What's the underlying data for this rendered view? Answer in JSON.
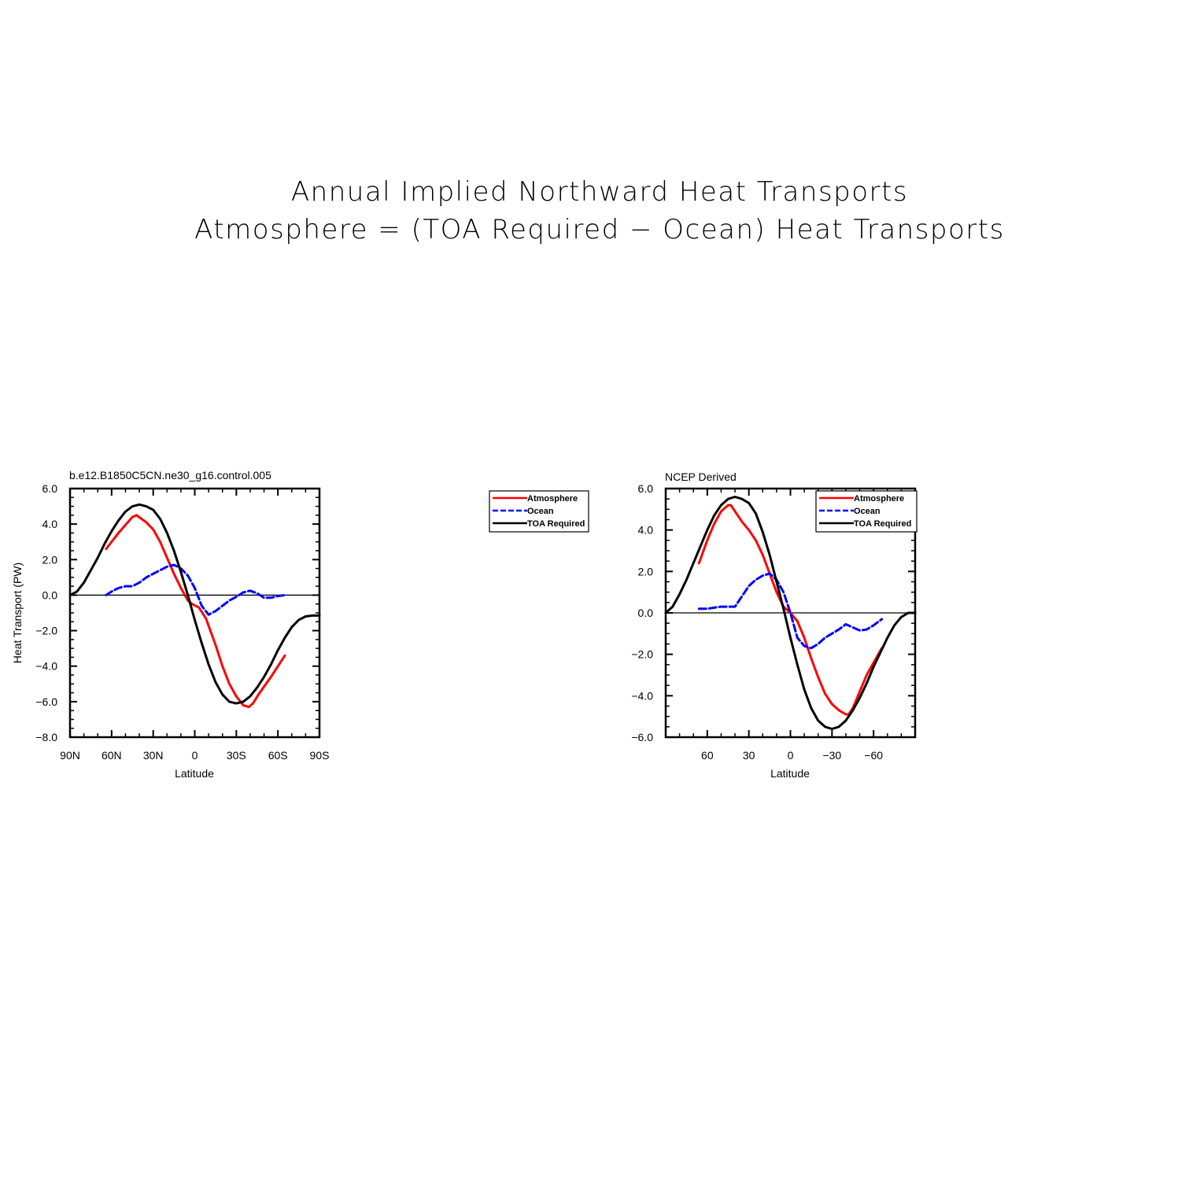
{
  "figure": {
    "title_line1": "Annual Implied Northward Heat Transports",
    "title_line2": "Atmosphere = (TOA Required − Ocean) Heat Transports"
  },
  "colors": {
    "atmosphere": "#ff0000",
    "ocean": "#0000ff",
    "toa": "#000000"
  },
  "legend_entries": [
    {
      "label": "Atmosphere",
      "color": "#ff0000",
      "dash": false
    },
    {
      "label": "Ocean",
      "color": "#0000ff",
      "dash": true
    },
    {
      "label": "TOA Required",
      "color": "#000000",
      "dash": false
    }
  ],
  "chart_data": [
    {
      "type": "line",
      "title": "b.e12.B1850C5CN.ne30_g16.control.005",
      "xlabel": "Latitude",
      "ylabel": "Heat Transport (PW)",
      "xlim": [
        90,
        -90
      ],
      "ylim": [
        -8,
        6
      ],
      "xticks": [
        90,
        60,
        30,
        0,
        -30,
        -60,
        -90
      ],
      "xticklabels": [
        "90N",
        "60N",
        "30N",
        "0",
        "30S",
        "60S",
        "90S"
      ],
      "yticks": [
        6,
        4,
        2,
        0,
        -2,
        -4,
        -6,
        -8
      ],
      "yticklabels": [
        "6.0",
        "4.0",
        "2.0",
        "0.0",
        "−2.0",
        "−4.0",
        "−6.0",
        "−8.0"
      ],
      "legend": "outside-right",
      "series": [
        {
          "name": "Atmosphere",
          "key": "atmosphere",
          "dash": false,
          "x": [
            64,
            55,
            45,
            42,
            35,
            30,
            25,
            20,
            15,
            10,
            5,
            2,
            -3,
            -8,
            -15,
            -20,
            -25,
            -30,
            -35,
            -39,
            -42,
            -46,
            -55,
            -65
          ],
          "y": [
            2.6,
            3.5,
            4.4,
            4.5,
            4.1,
            3.7,
            3.0,
            2.1,
            1.2,
            0.4,
            -0.3,
            -0.5,
            -0.7,
            -1.3,
            -2.8,
            -4.0,
            -5.0,
            -5.7,
            -6.2,
            -6.3,
            -6.1,
            -5.6,
            -4.6,
            -3.4
          ]
        },
        {
          "name": "Ocean",
          "key": "ocean",
          "dash": true,
          "x": [
            64,
            60,
            55,
            50,
            45,
            40,
            35,
            30,
            25,
            20,
            15,
            10,
            5,
            0,
            -5,
            -10,
            -15,
            -20,
            -25,
            -30,
            -35,
            -40,
            -45,
            -50,
            -55,
            -60,
            -65
          ],
          "y": [
            0.0,
            0.2,
            0.4,
            0.5,
            0.5,
            0.7,
            1.0,
            1.2,
            1.4,
            1.6,
            1.7,
            1.5,
            1.1,
            0.4,
            -0.6,
            -1.1,
            -0.9,
            -0.6,
            -0.3,
            -0.1,
            0.15,
            0.25,
            0.1,
            -0.15,
            -0.15,
            -0.05,
            0.0
          ]
        },
        {
          "name": "TOA Required",
          "key": "toa",
          "dash": false,
          "x": [
            90,
            85,
            80,
            75,
            70,
            65,
            60,
            55,
            50,
            45,
            40,
            35,
            30,
            25,
            20,
            15,
            10,
            5,
            0,
            -5,
            -10,
            -15,
            -20,
            -25,
            -30,
            -35,
            -40,
            -45,
            -50,
            -55,
            -60,
            -65,
            -70,
            -75,
            -80,
            -85,
            -90
          ],
          "y": [
            0.0,
            0.2,
            0.7,
            1.4,
            2.1,
            2.9,
            3.6,
            4.2,
            4.7,
            5.0,
            5.1,
            5.0,
            4.8,
            4.3,
            3.5,
            2.5,
            1.3,
            0.0,
            -1.4,
            -2.7,
            -3.9,
            -4.9,
            -5.6,
            -6.0,
            -6.1,
            -6.0,
            -5.7,
            -5.2,
            -4.6,
            -3.9,
            -3.1,
            -2.4,
            -1.8,
            -1.4,
            -1.2,
            -1.15,
            -1.15
          ]
        }
      ]
    },
    {
      "type": "line",
      "title": "NCEP Derived",
      "xlabel": "Latitude",
      "ylabel": "",
      "xlim": [
        90,
        -90
      ],
      "ylim": [
        -6,
        6
      ],
      "xticks": [
        60,
        30,
        0,
        -30,
        -60
      ],
      "xticklabels": [
        "60",
        "30",
        "0",
        "−30",
        "−60"
      ],
      "yticks": [
        6,
        4,
        2,
        0,
        -2,
        -4,
        -6
      ],
      "yticklabels": [
        "6.0",
        "4.0",
        "2.0",
        "0.0",
        "−2.0",
        "−4.0",
        "−6.0"
      ],
      "legend": "top-right",
      "series": [
        {
          "name": "Atmosphere",
          "key": "atmosphere",
          "dash": false,
          "x": [
            66,
            60,
            55,
            50,
            45,
            43,
            40,
            35,
            30,
            25,
            20,
            15,
            10,
            5,
            0,
            -5,
            -10,
            -15,
            -20,
            -25,
            -30,
            -35,
            -40,
            -42,
            -45,
            -50,
            -55,
            -60,
            -66
          ],
          "y": [
            2.4,
            3.5,
            4.3,
            4.9,
            5.2,
            5.2,
            4.9,
            4.4,
            4.0,
            3.5,
            2.8,
            1.9,
            1.0,
            0.3,
            0.0,
            -0.4,
            -1.2,
            -2.2,
            -3.1,
            -3.9,
            -4.4,
            -4.7,
            -4.9,
            -4.9,
            -4.6,
            -3.8,
            -3.0,
            -2.4,
            -1.7
          ]
        },
        {
          "name": "Ocean",
          "key": "ocean",
          "dash": true,
          "x": [
            66,
            60,
            55,
            50,
            45,
            40,
            35,
            30,
            25,
            20,
            15,
            10,
            5,
            0,
            -5,
            -10,
            -15,
            -20,
            -25,
            -30,
            -35,
            -40,
            -45,
            -50,
            -55,
            -60,
            -66
          ],
          "y": [
            0.2,
            0.2,
            0.25,
            0.3,
            0.3,
            0.3,
            0.8,
            1.3,
            1.6,
            1.8,
            1.9,
            1.6,
            1.0,
            0.0,
            -1.2,
            -1.6,
            -1.7,
            -1.5,
            -1.2,
            -1.0,
            -0.8,
            -0.55,
            -0.7,
            -0.85,
            -0.8,
            -0.6,
            -0.3
          ]
        },
        {
          "name": "TOA Required",
          "key": "toa",
          "dash": false,
          "x": [
            90,
            85,
            80,
            75,
            70,
            65,
            60,
            55,
            50,
            45,
            40,
            35,
            30,
            25,
            20,
            15,
            10,
            5,
            0,
            -5,
            -10,
            -15,
            -20,
            -25,
            -30,
            -35,
            -40,
            -45,
            -50,
            -55,
            -60,
            -65,
            -70,
            -75,
            -80,
            -85,
            -90
          ],
          "y": [
            0.0,
            0.3,
            0.9,
            1.6,
            2.4,
            3.2,
            4.0,
            4.7,
            5.2,
            5.5,
            5.6,
            5.5,
            5.3,
            4.8,
            3.9,
            2.8,
            1.5,
            0.2,
            -1.2,
            -2.5,
            -3.7,
            -4.6,
            -5.2,
            -5.5,
            -5.6,
            -5.5,
            -5.2,
            -4.7,
            -4.1,
            -3.4,
            -2.6,
            -1.9,
            -1.2,
            -0.6,
            -0.2,
            0.0,
            0.0
          ]
        }
      ]
    }
  ]
}
